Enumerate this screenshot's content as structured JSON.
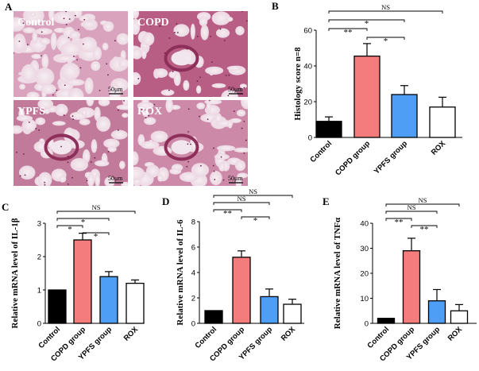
{
  "panel_a": {
    "letter": "A",
    "tiles": [
      {
        "label": "Control",
        "scale": "50μm",
        "tissue": "normal"
      },
      {
        "label": "COPD",
        "scale": "50μm",
        "tissue": "inflamed"
      },
      {
        "label": "YPFS",
        "scale": "50μm",
        "tissue": "mild"
      },
      {
        "label": "ROX",
        "scale": "50μm",
        "tissue": "moderate"
      }
    ]
  },
  "colors": {
    "control": "#000000",
    "copd": "#f47c7c",
    "ypfs": "#4f9ef5",
    "rox": "#ffffff"
  },
  "chart_data": [
    {
      "id": "B",
      "letter": "B",
      "type": "bar",
      "ylabel": "Histology score n=8",
      "categories": [
        "Control",
        "COPD group",
        "YPFS group",
        "ROX"
      ],
      "values": [
        9,
        45.5,
        24,
        17
      ],
      "errors": [
        2.5,
        7,
        5,
        5.5
      ],
      "ylim": [
        0,
        60
      ],
      "yticks": [
        "0",
        "20",
        "40",
        "60"
      ],
      "ytick_values": [
        0,
        20,
        40,
        60
      ],
      "brackets": [
        {
          "from": 0,
          "to": 3,
          "label": "NS"
        },
        {
          "from": 0,
          "to": 2,
          "label": "*"
        },
        {
          "from": 0,
          "to": 1,
          "label": "**"
        },
        {
          "from": 1,
          "to": 2,
          "label": "*"
        }
      ]
    },
    {
      "id": "C",
      "letter": "C",
      "type": "bar",
      "ylabel": "Relative mRNA level of IL-1β",
      "categories": [
        "Control",
        "COPD group",
        "YPFS group",
        "ROX"
      ],
      "values": [
        1.0,
        2.5,
        1.4,
        1.2
      ],
      "errors": [
        0,
        0.2,
        0.15,
        0.1
      ],
      "ylim": [
        0,
        3
      ],
      "yticks": [
        "0",
        "1",
        "2",
        "3"
      ],
      "ytick_values": [
        0,
        1,
        2,
        3
      ],
      "brackets": [
        {
          "from": 0,
          "to": 3,
          "label": "NS"
        },
        {
          "from": 0,
          "to": 2,
          "label": "*"
        },
        {
          "from": 0,
          "to": 1,
          "label": "*"
        },
        {
          "from": 1,
          "to": 2,
          "label": "*"
        }
      ]
    },
    {
      "id": "D",
      "letter": "D",
      "type": "bar",
      "ylabel": "Relative mRNA level of IL-6",
      "categories": [
        "Control",
        "COPD group",
        "YPFS group",
        "ROX"
      ],
      "values": [
        1.0,
        5.2,
        2.1,
        1.5
      ],
      "errors": [
        0,
        0.5,
        0.6,
        0.4
      ],
      "ylim": [
        0,
        8
      ],
      "yticks": [
        "0",
        "2",
        "4",
        "6",
        "8"
      ],
      "ytick_values": [
        0,
        2,
        4,
        6,
        8
      ],
      "brackets": [
        {
          "from": 0,
          "to": 3,
          "label": "NS"
        },
        {
          "from": 0,
          "to": 2,
          "label": "NS"
        },
        {
          "from": 0,
          "to": 1,
          "label": "**"
        },
        {
          "from": 1,
          "to": 2,
          "label": "*"
        }
      ]
    },
    {
      "id": "E",
      "letter": "E",
      "type": "bar",
      "ylabel": "Relative mRNA level of TNFα",
      "categories": [
        "Control",
        "COPD group",
        "YPFS group",
        "ROX"
      ],
      "values": [
        2,
        29,
        9,
        5
      ],
      "errors": [
        0,
        5,
        4.5,
        2.5
      ],
      "ylim": [
        0,
        40
      ],
      "yticks": [
        "0",
        "10",
        "20",
        "30",
        "40"
      ],
      "ytick_values": [
        0,
        10,
        20,
        30,
        40
      ],
      "brackets": [
        {
          "from": 0,
          "to": 3,
          "label": "NS"
        },
        {
          "from": 0,
          "to": 2,
          "label": "NS"
        },
        {
          "from": 0,
          "to": 1,
          "label": "**"
        },
        {
          "from": 1,
          "to": 2,
          "label": "**"
        }
      ]
    }
  ]
}
